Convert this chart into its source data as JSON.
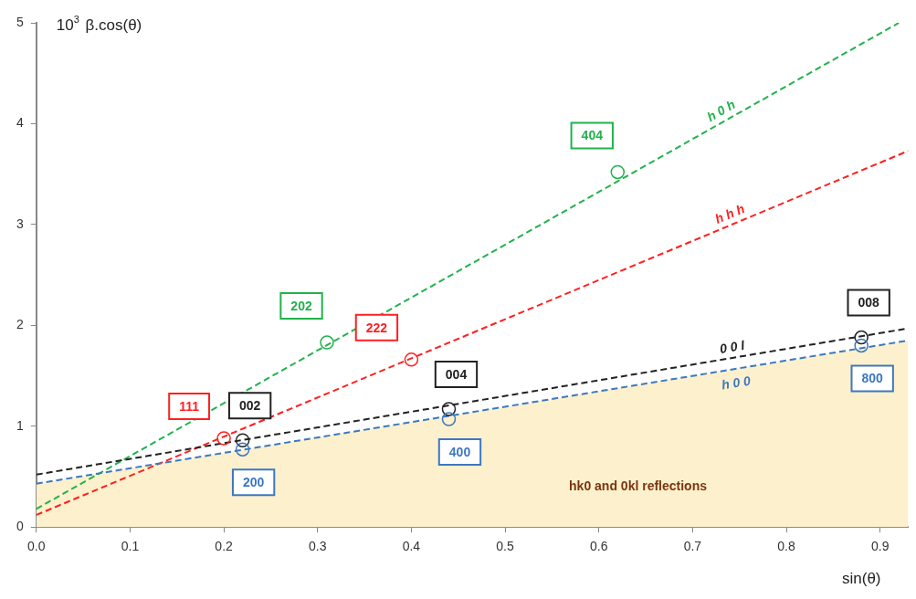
{
  "chart_data": {
    "type": "line",
    "xlabel": "sin(θ)",
    "ylabel": "10$^{3}$ β.cos(θ)",
    "xlim": [
      0,
      0.93
    ],
    "ylim": [
      0,
      5
    ],
    "xticks": [
      {
        "value": 0,
        "label": "0.0"
      },
      {
        "value": 0.1,
        "label": "0.1"
      },
      {
        "value": 0.2,
        "label": "0.2"
      },
      {
        "value": 0.3,
        "label": "0.3"
      },
      {
        "value": 0.4,
        "label": "0.4"
      },
      {
        "value": 0.5,
        "label": "0.5"
      },
      {
        "value": 0.6,
        "label": "0.6"
      },
      {
        "value": 0.7,
        "label": "0.7"
      },
      {
        "value": 0.8,
        "label": "0.8"
      },
      {
        "value": 0.9,
        "label": "0.9"
      }
    ],
    "yticks": [
      0,
      1,
      2,
      3,
      4,
      5
    ],
    "grid": false,
    "legend": false,
    "annotations": [
      "hk0 and 0kl reflections",
      {
        "text": "202",
        "x": 0.31,
        "y": 1.83
      },
      {
        "text": "404",
        "x": 0.62,
        "y": 3.52
      },
      {
        "text": "111",
        "x": 0.2,
        "y": 0.88
      },
      {
        "text": "222",
        "x": 0.4,
        "y": 1.66
      },
      {
        "text": "002",
        "x": 0.22,
        "y": 0.86
      },
      {
        "text": "004",
        "x": 0.44,
        "y": 1.17
      },
      {
        "text": "008",
        "x": 0.88,
        "y": 1.88
      },
      {
        "text": "200",
        "x": 0.22,
        "y": 0.77
      },
      {
        "text": "400",
        "x": 0.44,
        "y": 1.07
      },
      {
        "text": "800",
        "x": 0.88,
        "y": 1.8
      }
    ],
    "series": [
      {
        "type": "area",
        "color": "#fdf0cc",
        "x": [
          0,
          0.93
        ],
        "values": [
          0.43,
          1.85
        ]
      },
      {
        "type": "line",
        "name": "h 0 h",
        "color": "#22b24c",
        "x": [
          0,
          0.92
        ],
        "values": [
          0.18,
          5.0
        ],
        "line_style": "dashed",
        "marker": "none"
      },
      {
        "type": "line",
        "name": "h h h",
        "color": "#ff2020",
        "x": [
          0,
          0.93
        ],
        "values": [
          0.12,
          3.73
        ],
        "line_style": "dashed",
        "marker": "none"
      },
      {
        "type": "line",
        "name": "0 0 l",
        "color": "#222222",
        "x": [
          0,
          0.93
        ],
        "values": [
          0.52,
          1.97
        ],
        "line_style": "dashed",
        "marker": "none"
      },
      {
        "type": "line",
        "name": "h 0 0",
        "color": "#3c78c0",
        "x": [
          0,
          0.93
        ],
        "values": [
          0.43,
          1.85
        ],
        "line_style": "dashed",
        "marker": "none"
      },
      {
        "type": "scatter",
        "color": "#22b24c",
        "x": [
          0.31,
          0.62
        ],
        "values": [
          1.83,
          3.52
        ],
        "marker": "circle"
      },
      {
        "type": "scatter",
        "color": "#ff2020",
        "x": [
          0.2,
          0.4
        ],
        "values": [
          0.88,
          1.66
        ],
        "marker": "circle"
      },
      {
        "type": "scatter",
        "color": "#222222",
        "x": [
          0.22,
          0.44,
          0.88
        ],
        "values": [
          0.86,
          1.17,
          1.88
        ],
        "marker": "circle"
      },
      {
        "type": "scatter",
        "color": "#3c78c0",
        "x": [
          0.22,
          0.44,
          0.88
        ],
        "values": [
          0.77,
          1.07,
          1.8
        ],
        "marker": "circle"
      }
    ]
  }
}
